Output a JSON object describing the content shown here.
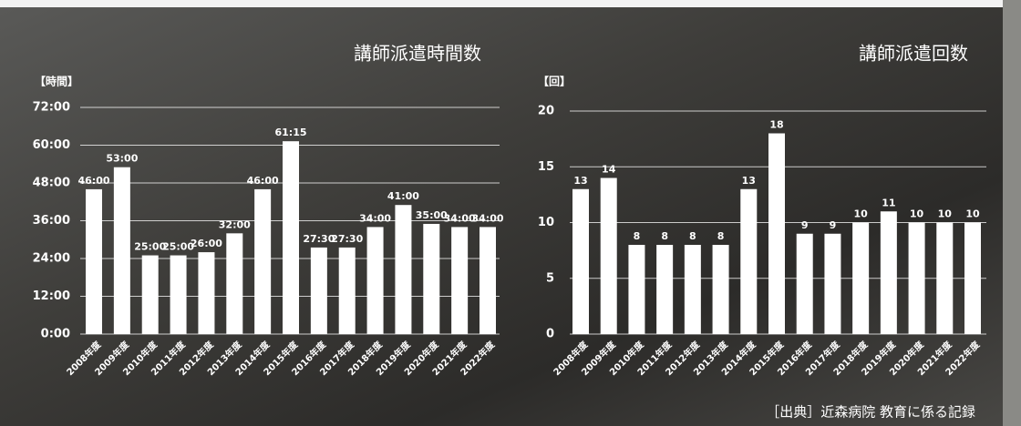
{
  "chart_data": [
    {
      "type": "bar",
      "title": "講師派遣時間数",
      "y_label": "【時間】",
      "categories": [
        "2008年度",
        "2009年度",
        "2010年度",
        "2011年度",
        "2012年度",
        "2013年度",
        "2014年度",
        "2015年度",
        "2016年度",
        "2017年度",
        "2018年度",
        "2019年度",
        "2020年度",
        "2021年度",
        "2022年度"
      ],
      "values": [
        46,
        53,
        25,
        25,
        26,
        32,
        46,
        61.25,
        27.5,
        27.5,
        34,
        41,
        35,
        34,
        34
      ],
      "value_labels": [
        "46:00",
        "53:00",
        "25:00",
        "25:00",
        "26:00",
        "32:00",
        "46:00",
        "61:15",
        "27:30",
        "27:30",
        "34:00",
        "41:00",
        "35:00",
        "34:00",
        "34:00"
      ],
      "color": "#ffffff",
      "ylim": [
        0,
        72
      ],
      "yticks": [
        {
          "value": 0,
          "label": "0:00"
        },
        {
          "value": 12,
          "label": "12:00"
        },
        {
          "value": 24,
          "label": "24:00"
        },
        {
          "value": 36,
          "label": "36:00"
        },
        {
          "value": 48,
          "label": "48:00"
        },
        {
          "value": 60,
          "label": "60:00"
        },
        {
          "value": 72,
          "label": "72:00"
        }
      ],
      "grid": true
    },
    {
      "type": "bar",
      "title": "講師派遣回数",
      "y_label": "【回】",
      "categories": [
        "2008年度",
        "2009年度",
        "2010年度",
        "2011年度",
        "2012年度",
        "2013年度",
        "2014年度",
        "2015年度",
        "2016年度",
        "2017年度",
        "2018年度",
        "2019年度",
        "2020年度",
        "2021年度",
        "2022年度"
      ],
      "values": [
        13,
        14,
        8,
        8,
        8,
        8,
        13,
        18,
        9,
        9,
        10,
        11,
        10,
        10,
        10
      ],
      "color": "#ffffff",
      "ylim": [
        0,
        20
      ],
      "yticks": [
        0,
        5,
        10,
        15,
        20
      ],
      "grid": true
    }
  ],
  "source": "［出典］近森病院 教育に係る記録"
}
